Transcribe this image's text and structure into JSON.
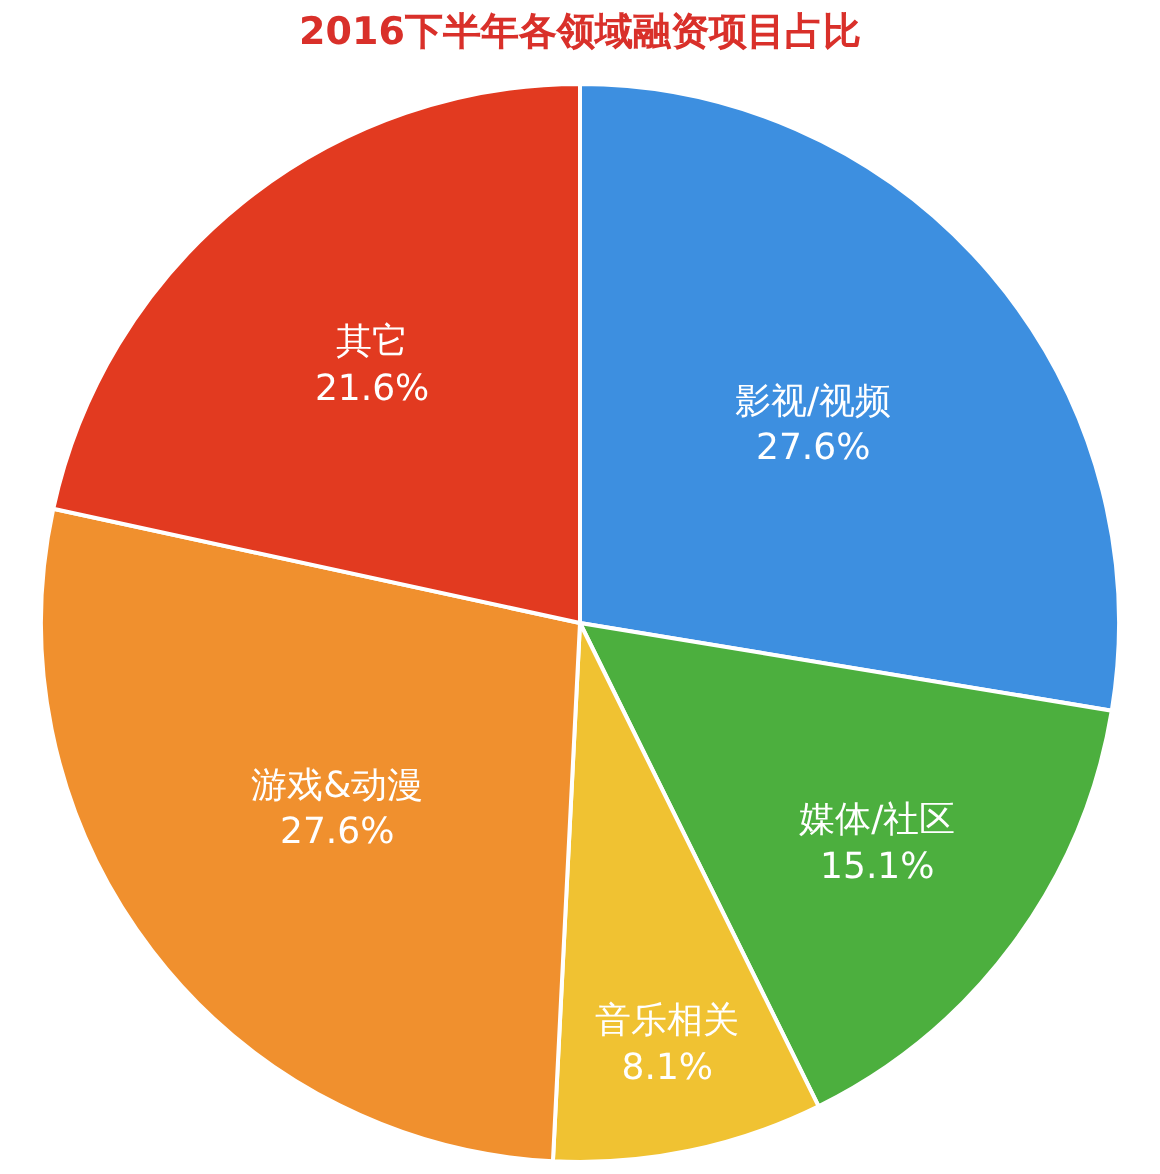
{
  "chart_data": {
    "type": "pie",
    "title": "2016下半年各领域融资项目占比",
    "categories": [
      "影视/视频",
      "媒体/社区",
      "音乐相关",
      "游戏&动漫",
      "其它"
    ],
    "values": [
      27.6,
      15.1,
      8.1,
      27.6,
      21.6
    ],
    "colors": [
      "#3d8fe0",
      "#4caf3e",
      "#f0c232",
      "#f0902e",
      "#e23a20"
    ],
    "value_labels": [
      "27.6%",
      "15.1%",
      "8.1%",
      "27.6%",
      "21.6%"
    ],
    "legend": false
  }
}
